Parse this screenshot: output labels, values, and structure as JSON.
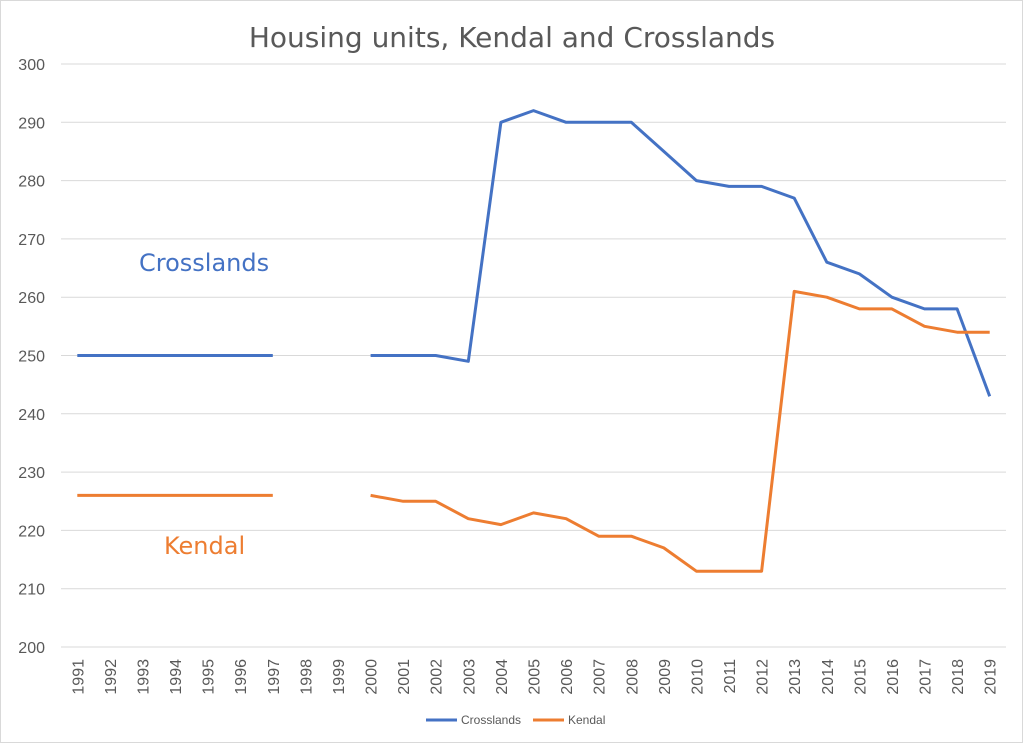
{
  "chart_data": {
    "type": "line",
    "title": "Housing units, Kendal and Crosslands",
    "xlabel": "",
    "ylabel": "",
    "ylim": [
      200,
      300
    ],
    "yticks": [
      "200",
      "210",
      "220",
      "230",
      "240",
      "250",
      "260",
      "270",
      "280",
      "290",
      "300"
    ],
    "grid": true,
    "legend": "bottom",
    "categories": [
      "1991",
      "1992",
      "1993",
      "1994",
      "1995",
      "1996",
      "1997",
      "1998",
      "1999",
      "2000",
      "2001",
      "2002",
      "2003",
      "2004",
      "2005",
      "2006",
      "2007",
      "2008",
      "2009",
      "2010",
      "2011",
      "2012",
      "2013",
      "2014",
      "2015",
      "2016",
      "2017",
      "2018",
      "2019"
    ],
    "series": [
      {
        "name": "Crosslands",
        "color": "#4472c4",
        "values": [
          250,
          250,
          250,
          250,
          250,
          250,
          250,
          null,
          null,
          250,
          250,
          250,
          249,
          290,
          292,
          290,
          290,
          290,
          285,
          280,
          279,
          279,
          277,
          266,
          264,
          260,
          258,
          258,
          243
        ]
      },
      {
        "name": "Kendal",
        "color": "#ed7d31",
        "values": [
          226,
          226,
          226,
          226,
          226,
          226,
          226,
          null,
          null,
          226,
          225,
          225,
          222,
          221,
          223,
          222,
          219,
          219,
          217,
          213,
          213,
          213,
          261,
          260,
          258,
          258,
          255,
          254,
          254
        ]
      }
    ],
    "annotations": [
      {
        "text": "Crosslands",
        "color": "#4472c4"
      },
      {
        "text": "Kendal",
        "color": "#ed7d31"
      }
    ]
  }
}
